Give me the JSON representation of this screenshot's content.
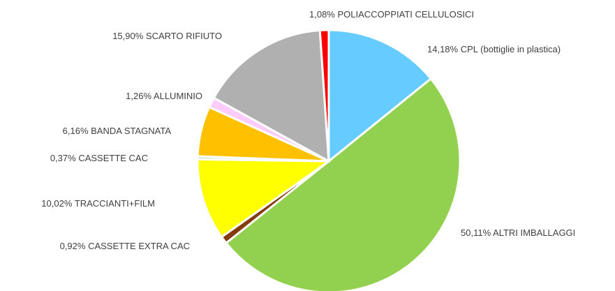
{
  "chart_data": {
    "type": "pie",
    "categories": [
      "CPL (bottiglie in plastica)",
      "ALTRI IMBALLAGGI",
      "CASSETTE EXTRA CAC",
      "TRACCIANTI+FILM",
      "CASSETTE CAC",
      "BANDA STAGNATA",
      "ALLUMINIO",
      "SCARTO RIFIUTO",
      "POLIACCOPPIATI CELLULOSICI"
    ],
    "values": [
      14.18,
      50.11,
      0.92,
      10.02,
      0.37,
      6.16,
      1.26,
      15.9,
      1.08
    ],
    "value_labels": [
      "14,18%",
      "50,11%",
      "0,92%",
      "10,02%",
      "0,37%",
      "6,16%",
      "1,26%",
      "15,90%",
      "1,08%"
    ],
    "colors": [
      "#66CCFF",
      "#92D050",
      "#843C0C",
      "#FFFF00",
      "#C5E0B4",
      "#FFC000",
      "#FFCCFF",
      "#B0B0B0",
      "#FF0000"
    ]
  }
}
